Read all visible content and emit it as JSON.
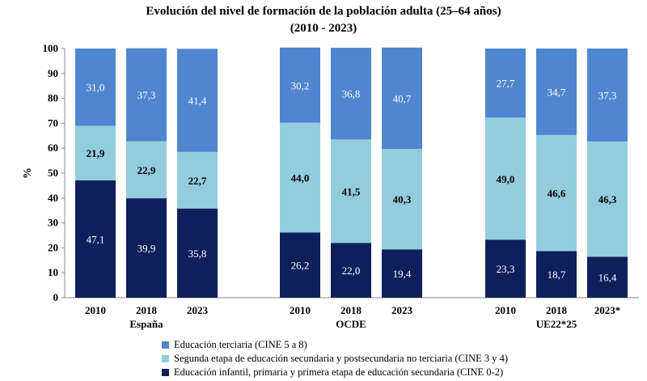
{
  "chart_data": {
    "type": "bar",
    "stacked": true,
    "title": "Evolución del nivel de formación de la población adulta (25–64 años)",
    "subtitle": "(2010 - 2023)",
    "ylabel": "%",
    "ylim": [
      0,
      100
    ],
    "yticks": [
      "0",
      "10",
      "20",
      "30",
      "40",
      "50",
      "60",
      "70",
      "80",
      "90",
      "100"
    ],
    "groups": [
      {
        "name": "España",
        "categories": [
          "2010",
          "2018",
          "2023"
        ]
      },
      {
        "name": "OCDE",
        "categories": [
          "2010",
          "2018",
          "2023"
        ]
      },
      {
        "name": "UE22*25",
        "categories": [
          "2010",
          "2018",
          "2023*"
        ]
      }
    ],
    "series": [
      {
        "name": "Educación infantil, primaria y primera etapa de educación secundaria (CINE 0-2)",
        "color": "#0f1f5c",
        "values": [
          47.1,
          39.9,
          35.8,
          26.2,
          22.0,
          19.4,
          23.3,
          18.7,
          16.4
        ],
        "labels": [
          "47,1",
          "39,9",
          "35,8",
          "26,2",
          "22,0",
          "19,4",
          "23,3",
          "18,7",
          "16,4"
        ]
      },
      {
        "name": "Segunda etapa de educación secundaria y postsecundaria no terciaria (CINE 3 y 4)",
        "color": "#93cddd",
        "values": [
          21.9,
          22.9,
          22.7,
          44.0,
          41.5,
          40.3,
          49.0,
          46.6,
          46.3
        ],
        "labels": [
          "21,9",
          "22,9",
          "22,7",
          "44,0",
          "41,5",
          "40,3",
          "49,0",
          "46,6",
          "46,3"
        ]
      },
      {
        "name": "Educación terciaria (CINE 5 a 8)",
        "color": "#4f86cf",
        "values": [
          31.0,
          37.3,
          41.4,
          30.2,
          36.8,
          40.7,
          27.7,
          34.7,
          37.3
        ],
        "labels": [
          "31,0",
          "37,3",
          "41,4",
          "30,2",
          "36,8",
          "40,7",
          "27,7",
          "34,7",
          "37,3"
        ]
      }
    ],
    "legend": {
      "position": "bottom",
      "entries": [
        {
          "label": "Educación terciaria (CINE 5 a 8)",
          "color": "#4f86cf"
        },
        {
          "label": "Segunda etapa de educación secundaria y postsecundaria no terciaria (CINE 3 y 4)",
          "color": "#93cddd"
        },
        {
          "label": "Educación infantil, primaria y primera etapa de educación secundaria (CINE 0-2)",
          "color": "#0f1f5c"
        }
      ]
    },
    "grid": false
  }
}
